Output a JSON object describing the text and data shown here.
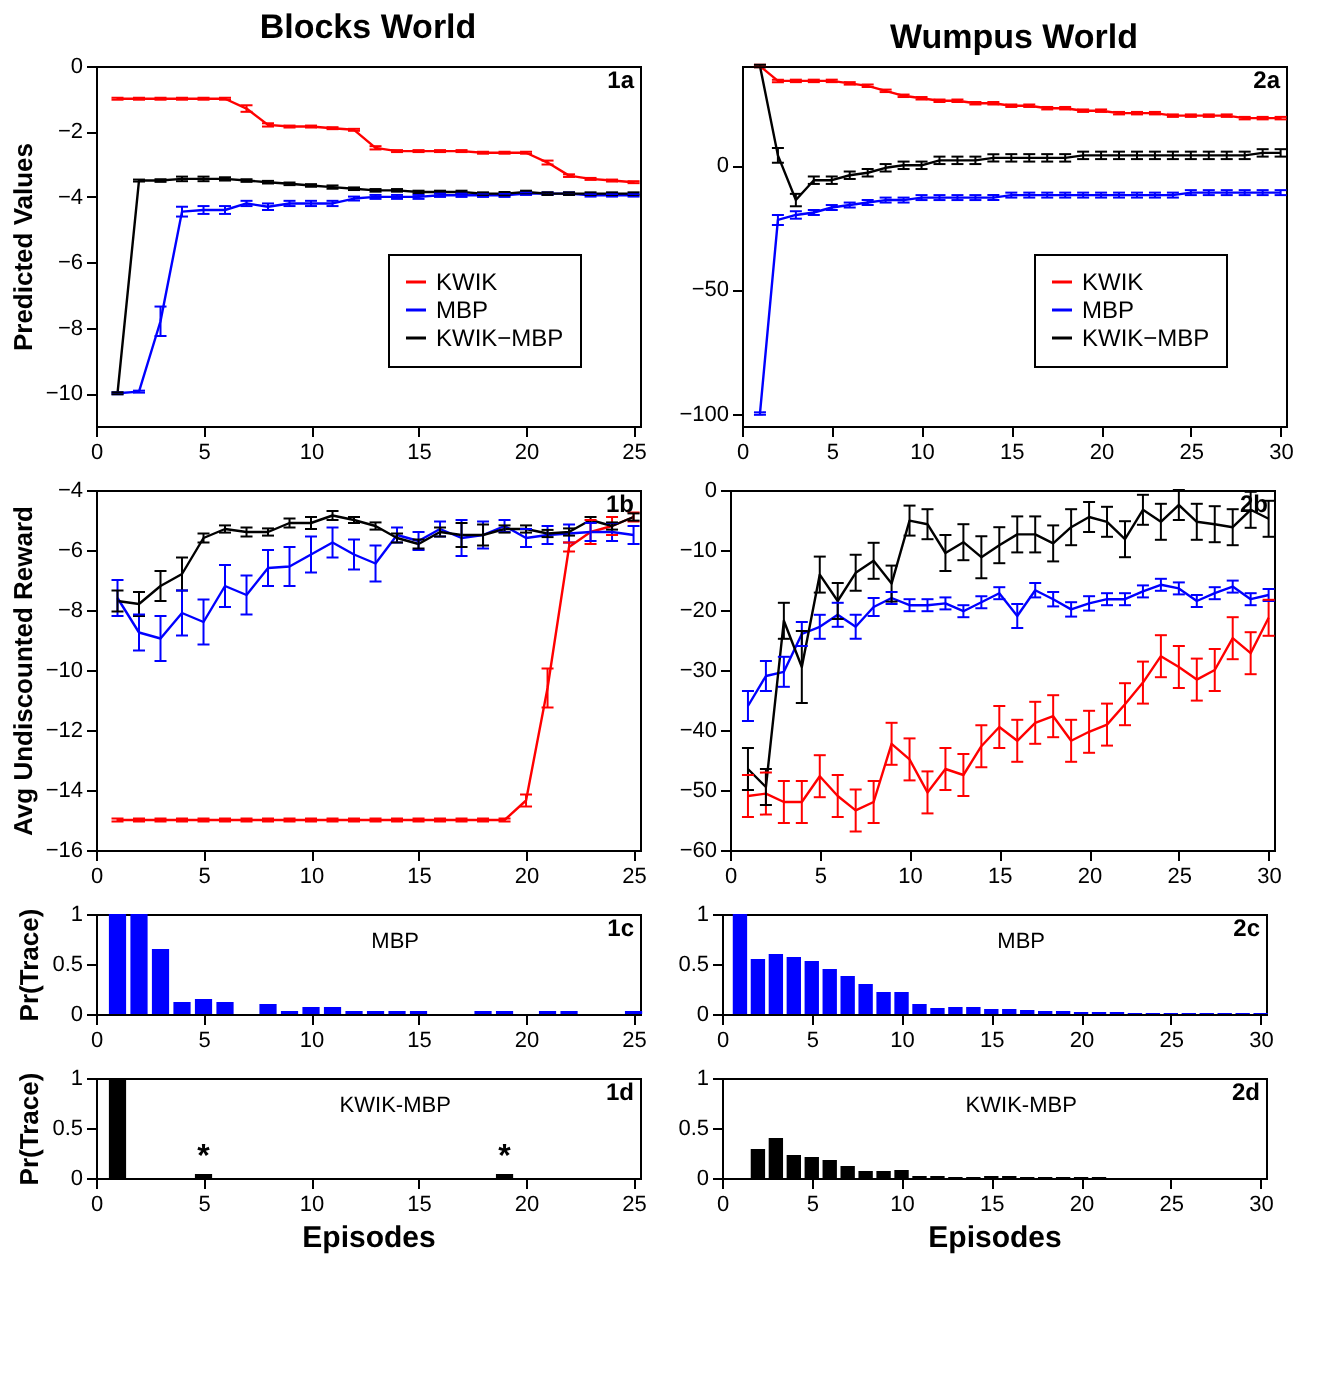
{
  "chart_data": [
    {
      "type": "line",
      "title": "Blocks World",
      "ylabel": "Predicted Values",
      "annotations": [
        "1a"
      ],
      "legend": "bottom right",
      "x": [
        1,
        2,
        3,
        4,
        5,
        6,
        7,
        8,
        9,
        10,
        11,
        12,
        13,
        14,
        15,
        16,
        17,
        18,
        19,
        20,
        21,
        22,
        23,
        24,
        25
      ],
      "xlim": [
        0,
        25.3
      ],
      "xticks": [
        0,
        5,
        10,
        15,
        20,
        25
      ],
      "ylim": [
        -11,
        0
      ],
      "yticks": [
        -10,
        -8,
        -6,
        -4,
        -2,
        0
      ],
      "series": [
        {
          "name": "KWIK",
          "color": "#ff0000",
          "values": [
            -1,
            -1,
            -1,
            -1,
            -1,
            -1,
            -1.3,
            -1.8,
            -1.85,
            -1.85,
            -1.9,
            -1.95,
            -2.5,
            -2.6,
            -2.6,
            -2.6,
            -2.6,
            -2.65,
            -2.65,
            -2.65,
            -2.95,
            -3.35,
            -3.45,
            -3.5,
            -3.55
          ],
          "errors": [
            0.03,
            0.03,
            0.03,
            0.03,
            0.03,
            0.03,
            0.1,
            0.05,
            0.03,
            0.03,
            0.03,
            0.03,
            0.05,
            0.03,
            0.03,
            0.03,
            0.03,
            0.03,
            0.03,
            0.03,
            0.06,
            0.04,
            0.03,
            0.03,
            0.03
          ]
        },
        {
          "name": "MBP",
          "color": "#0000ff",
          "values": [
            -10,
            -9.95,
            -7.8,
            -4.45,
            -4.4,
            -4.4,
            -4.2,
            -4.3,
            -4.2,
            -4.2,
            -4.2,
            -4.05,
            -4,
            -4,
            -4,
            -3.95,
            -3.95,
            -3.95,
            -3.95,
            -3.9,
            -3.9,
            -3.9,
            -3.95,
            -3.95,
            -3.95
          ],
          "errors": [
            0.03,
            0.03,
            0.45,
            0.15,
            0.12,
            0.12,
            0.08,
            0.1,
            0.08,
            0.08,
            0.08,
            0.06,
            0.06,
            0.06,
            0.06,
            0.05,
            0.05,
            0.05,
            0.05,
            0.04,
            0.04,
            0.04,
            0.04,
            0.04,
            0.04
          ]
        },
        {
          "name": "KWIK−MBP",
          "color": "#000000",
          "values": [
            -10,
            -3.5,
            -3.5,
            -3.45,
            -3.45,
            -3.45,
            -3.5,
            -3.55,
            -3.6,
            -3.65,
            -3.7,
            -3.75,
            -3.8,
            -3.8,
            -3.85,
            -3.85,
            -3.85,
            -3.9,
            -3.9,
            -3.85,
            -3.9,
            -3.9,
            -3.9,
            -3.9,
            -3.9
          ],
          "errors": [
            0.03,
            0.03,
            0.04,
            0.07,
            0.07,
            0.05,
            0.04,
            0.04,
            0.04,
            0.04,
            0.05,
            0.04,
            0.04,
            0.04,
            0.04,
            0.04,
            0.04,
            0.04,
            0.05,
            0.04,
            0.04,
            0.04,
            0.04,
            0.04,
            0.04
          ]
        }
      ]
    },
    {
      "type": "line",
      "title": "Wumpus World",
      "annotations": [
        "2a"
      ],
      "legend": "bottom right",
      "x": [
        1,
        2,
        3,
        4,
        5,
        6,
        7,
        8,
        9,
        10,
        11,
        12,
        13,
        14,
        15,
        16,
        17,
        18,
        19,
        20,
        21,
        22,
        23,
        24,
        25,
        26,
        27,
        28,
        29,
        30
      ],
      "xlim": [
        0,
        30.3
      ],
      "xticks": [
        0,
        5,
        10,
        15,
        20,
        25,
        30
      ],
      "ylim": [
        -105,
        40
      ],
      "yticks": [
        -100,
        -50,
        0
      ],
      "series": [
        {
          "name": "KWIK",
          "color": "#ff0000",
          "values": [
            40,
            34,
            34,
            34,
            34,
            33,
            32,
            30,
            28,
            27,
            26,
            26,
            25,
            25,
            24,
            24,
            23,
            23,
            22,
            22,
            21,
            21,
            21,
            20,
            20,
            20,
            20,
            19,
            19,
            19
          ],
          "errors": [
            0.5,
            0.5,
            0.5,
            0.5,
            0.5,
            0.5,
            0.5,
            0.5,
            0.5,
            0.5,
            0.5,
            0.5,
            0.5,
            0.5,
            0.5,
            0.5,
            0.5,
            0.5,
            0.5,
            0.5,
            0.5,
            0.5,
            0.5,
            0.5,
            0.5,
            0.5,
            0.5,
            0.5,
            0.5,
            0.5
          ]
        },
        {
          "name": "MBP",
          "color": "#0000ff",
          "values": [
            -100,
            -22,
            -20,
            -19,
            -17,
            -16,
            -15,
            -14,
            -14,
            -13,
            -13,
            -13,
            -13,
            -13,
            -12,
            -12,
            -12,
            -12,
            -12,
            -12,
            -12,
            -12,
            -12,
            -12,
            -11,
            -11,
            -11,
            -11,
            -11,
            -11
          ],
          "errors": [
            0.5,
            2,
            1.5,
            1,
            1,
            1,
            1,
            1,
            1,
            1,
            1,
            1,
            1,
            1,
            1,
            1,
            1,
            1,
            1,
            1,
            1,
            1,
            1,
            1,
            1,
            1,
            1,
            1,
            1,
            1
          ]
        },
        {
          "name": "KWIK−MBP",
          "color": "#000000",
          "values": [
            40,
            4,
            -14,
            -6,
            -6,
            -4,
            -3,
            -1,
            0,
            0,
            2,
            2,
            2,
            3,
            3,
            3,
            3,
            3,
            4,
            4,
            4,
            4,
            4,
            4,
            4,
            4,
            4,
            4,
            5,
            5
          ],
          "errors": [
            0.5,
            3,
            2.5,
            1.5,
            1.5,
            1.5,
            1.5,
            1.5,
            1.5,
            1.5,
            1.5,
            1.5,
            1.5,
            1.5,
            1.5,
            1.5,
            1.5,
            1.5,
            1.5,
            1.5,
            1.5,
            1.5,
            1.5,
            1.5,
            1.5,
            1.5,
            1.5,
            1.5,
            1.5,
            1.5
          ]
        }
      ]
    },
    {
      "type": "line",
      "ylabel": "Avg Undiscounted Reward",
      "annotations": [
        "1b"
      ],
      "x": [
        1,
        2,
        3,
        4,
        5,
        6,
        7,
        8,
        9,
        10,
        11,
        12,
        13,
        14,
        15,
        16,
        17,
        18,
        19,
        20,
        21,
        22,
        23,
        24,
        25
      ],
      "xlim": [
        0,
        25.3
      ],
      "xticks": [
        0,
        5,
        10,
        15,
        20,
        25
      ],
      "ylim": [
        -16,
        -4
      ],
      "yticks": [
        -16,
        -14,
        -12,
        -10,
        -8,
        -6,
        -4
      ],
      "series": [
        {
          "color": "#ff0000",
          "values": [
            -15,
            -15,
            -15,
            -15,
            -15,
            -15,
            -15,
            -15,
            -15,
            -15,
            -15,
            -15,
            -15,
            -15,
            -15,
            -15,
            -15,
            -15,
            -15,
            -14.35,
            -10.6,
            -5.9,
            -5.4,
            -5.2,
            -4.9
          ],
          "errors": [
            0.05,
            0.05,
            0.05,
            0.05,
            0.05,
            0.05,
            0.05,
            0.05,
            0.05,
            0.05,
            0.05,
            0.05,
            0.05,
            0.05,
            0.05,
            0.05,
            0.05,
            0.05,
            0.05,
            0.2,
            0.65,
            0.15,
            0.4,
            0.3,
            0.15
          ]
        },
        {
          "color": "#0000ff",
          "values": [
            -7.6,
            -8.75,
            -8.95,
            -8.1,
            -8.4,
            -7.2,
            -7.5,
            -6.6,
            -6.55,
            -6.15,
            -5.75,
            -6.15,
            -6.45,
            -5.5,
            -5.7,
            -5.3,
            -5.6,
            -5.5,
            -5.2,
            -5.6,
            -5.5,
            -5.45,
            -5.4,
            -5.4,
            -5.5
          ],
          "errors": [
            0.6,
            0.6,
            0.75,
            0.75,
            0.75,
            0.7,
            0.65,
            0.6,
            0.65,
            0.6,
            0.5,
            0.5,
            0.6,
            0.25,
            0.3,
            0.25,
            0.6,
            0.45,
            0.2,
            0.3,
            0.3,
            0.3,
            0.3,
            0.3,
            0.3
          ]
        },
        {
          "color": "#000000",
          "values": [
            -7.7,
            -7.8,
            -7.2,
            -6.8,
            -5.6,
            -5.3,
            -5.4,
            -5.4,
            -5.1,
            -5.1,
            -4.85,
            -5,
            -5.2,
            -5.6,
            -5.8,
            -5.4,
            -5.5,
            -5.5,
            -5.3,
            -5.3,
            -5.45,
            -5.4,
            -5,
            -5.2,
            -4.9
          ],
          "errors": [
            0.35,
            0.4,
            0.5,
            0.55,
            0.15,
            0.12,
            0.15,
            0.12,
            0.15,
            0.2,
            0.15,
            0.1,
            0.12,
            0.15,
            0.15,
            0.15,
            0.4,
            0.35,
            0.12,
            0.12,
            0.12,
            0.12,
            0.1,
            0.12,
            0.12
          ]
        }
      ]
    },
    {
      "type": "line",
      "annotations": [
        "2b"
      ],
      "x": [
        1,
        2,
        3,
        4,
        5,
        6,
        7,
        8,
        9,
        10,
        11,
        12,
        13,
        14,
        15,
        16,
        17,
        18,
        19,
        20,
        21,
        22,
        23,
        24,
        25,
        26,
        27,
        28,
        29,
        30
      ],
      "xlim": [
        0,
        30.3
      ],
      "xticks": [
        0,
        5,
        10,
        15,
        20,
        25,
        30
      ],
      "ylim": [
        -60,
        0
      ],
      "yticks": [
        -60,
        -50,
        -40,
        -30,
        -20,
        -10,
        0
      ],
      "series": [
        {
          "color": "#ff0000",
          "values": [
            -51,
            -50.6,
            -52,
            -52,
            -47.7,
            -51,
            -53.4,
            -52,
            -42.3,
            -44.9,
            -50.4,
            -46.5,
            -47.5,
            -42.7,
            -39.5,
            -41.8,
            -38.8,
            -37.7,
            -41.8,
            -40.3,
            -39.1,
            -35.7,
            -32.1,
            -27.7,
            -29.5,
            -31.6,
            -30,
            -24.7,
            -27.2,
            -21.3
          ],
          "errors": [
            3.5,
            3.5,
            3.5,
            3.5,
            3.5,
            3.5,
            3.5,
            3.5,
            3.5,
            3.5,
            3.5,
            3.5,
            3.5,
            3.5,
            3.5,
            3.5,
            3.5,
            3.5,
            3.5,
            3.5,
            3.5,
            3.5,
            3.5,
            3.5,
            3.5,
            3.5,
            3.5,
            3.5,
            3.5,
            3
          ]
        },
        {
          "color": "#0000ff",
          "values": [
            -36,
            -31,
            -30.3,
            -24,
            -22.8,
            -20.8,
            -22.8,
            -19.5,
            -18,
            -19.2,
            -19.2,
            -18.9,
            -20.2,
            -18.7,
            -17.2,
            -21,
            -16.7,
            -18.2,
            -19.9,
            -18.9,
            -18.2,
            -18.2,
            -16.9,
            -15.8,
            -16.4,
            -18.5,
            -17.2,
            -16.1,
            -18.2,
            -17.5
          ],
          "errors": [
            2.5,
            2.5,
            2.5,
            2,
            2,
            2,
            2,
            1.5,
            1,
            1,
            1,
            1,
            1,
            1,
            1,
            2,
            1.2,
            1.2,
            1.2,
            1.2,
            1,
            1,
            1,
            1,
            1,
            1,
            1,
            1,
            1,
            1
          ]
        },
        {
          "color": "#000000",
          "values": [
            -46.5,
            -49.5,
            -21.8,
            -29.5,
            -14.1,
            -18.5,
            -13.8,
            -11.8,
            -15.6,
            -5.1,
            -5.7,
            -10.5,
            -8.7,
            -11.2,
            -9.2,
            -7.4,
            -7.4,
            -8.9,
            -6.2,
            -4.5,
            -5.3,
            -8.2,
            -3.3,
            -5.3,
            -2.5,
            -5.3,
            -5.7,
            -6.2,
            -3.3,
            -4.8
          ],
          "errors": [
            3.5,
            3,
            3,
            6,
            3,
            3,
            3,
            3,
            3,
            2.5,
            2.5,
            3,
            3,
            3.5,
            3,
            3,
            3,
            3,
            3,
            2.5,
            2.5,
            3,
            2.5,
            3,
            2.5,
            3,
            3,
            3,
            3,
            3
          ]
        }
      ]
    },
    {
      "type": "bar",
      "ylabel": "Pr(Trace)",
      "annotations": [
        "1c",
        "MBP"
      ],
      "color": "#0000ff",
      "x": [
        1,
        2,
        3,
        4,
        5,
        6,
        7,
        8,
        9,
        10,
        11,
        12,
        13,
        14,
        15,
        16,
        17,
        18,
        19,
        20,
        21,
        22,
        23,
        24,
        25
      ],
      "values": [
        1,
        1,
        0.65,
        0.12,
        0.15,
        0.12,
        0,
        0.1,
        0.03,
        0.07,
        0.07,
        0.03,
        0.03,
        0.03,
        0.03,
        0,
        0,
        0.03,
        0.03,
        0,
        0.03,
        0.03,
        0,
        0,
        0.03
      ],
      "xlim": [
        0,
        25.3
      ],
      "xticks": [
        0,
        5,
        10,
        15,
        20,
        25
      ],
      "ylim": [
        0,
        1
      ],
      "yticks": [
        0,
        0.5,
        1
      ]
    },
    {
      "type": "bar",
      "annotations": [
        "2c",
        "MBP"
      ],
      "color": "#0000ff",
      "x": [
        1,
        2,
        3,
        4,
        5,
        6,
        7,
        8,
        9,
        10,
        11,
        12,
        13,
        14,
        15,
        16,
        17,
        18,
        19,
        20,
        21,
        22,
        23,
        24,
        25,
        26,
        27,
        28,
        29,
        30
      ],
      "values": [
        1,
        0.55,
        0.6,
        0.57,
        0.53,
        0.45,
        0.38,
        0.3,
        0.22,
        0.22,
        0.1,
        0.06,
        0.07,
        0.07,
        0.05,
        0.05,
        0.04,
        0.03,
        0.03,
        0.02,
        0.02,
        0.02,
        0.01,
        0.01,
        0.01,
        0.01,
        0.01,
        0.01,
        0.01,
        0.01
      ],
      "xlim": [
        0,
        30.3
      ],
      "xticks": [
        0,
        5,
        10,
        15,
        20,
        25,
        30
      ],
      "ylim": [
        0,
        1
      ],
      "yticks": [
        0,
        0.5,
        1
      ]
    },
    {
      "type": "bar",
      "ylabel": "Pr(Trace)",
      "xlabel": "Episodes",
      "color": "#000000",
      "annotations": [
        "1d",
        "KWIK-MBP",
        {
          "text": "*",
          "x": 5,
          "y": 0.04
        },
        {
          "text": "*",
          "x": 19,
          "y": 0.04
        }
      ],
      "x": [
        1,
        2,
        3,
        4,
        5,
        6,
        7,
        8,
        9,
        10,
        11,
        12,
        13,
        14,
        15,
        16,
        17,
        18,
        19,
        20,
        21,
        22,
        23,
        24,
        25
      ],
      "values": [
        1,
        0,
        0,
        0,
        0.04,
        0,
        0,
        0,
        0,
        0,
        0,
        0,
        0,
        0,
        0,
        0,
        0,
        0,
        0.04,
        0,
        0,
        0,
        0,
        0,
        0
      ],
      "xlim": [
        0,
        25.3
      ],
      "xticks": [
        0,
        5,
        10,
        15,
        20,
        25
      ],
      "ylim": [
        0,
        1
      ],
      "yticks": [
        0,
        0.5,
        1
      ]
    },
    {
      "type": "bar",
      "xlabel": "Episodes",
      "annotations": [
        "2d",
        "KWIK-MBP"
      ],
      "color": "#000000",
      "x": [
        1,
        2,
        3,
        4,
        5,
        6,
        7,
        8,
        9,
        10,
        11,
        12,
        13,
        14,
        15,
        16,
        17,
        18,
        19,
        20,
        21,
        22,
        23,
        24,
        25,
        26,
        27,
        28,
        29,
        30
      ],
      "values": [
        0,
        0.29,
        0.4,
        0.23,
        0.21,
        0.18,
        0.12,
        0.07,
        0.07,
        0.08,
        0.02,
        0.02,
        0.01,
        0.01,
        0.02,
        0.02,
        0.01,
        0.01,
        0.01,
        0.01,
        0.01,
        0,
        0,
        0,
        0,
        0,
        0,
        0,
        0,
        0
      ],
      "xlim": [
        0,
        30.3
      ],
      "xticks": [
        0,
        5,
        10,
        15,
        20,
        25,
        30
      ],
      "ylim": [
        0,
        1
      ],
      "yticks": [
        0,
        0.5,
        1
      ]
    }
  ]
}
